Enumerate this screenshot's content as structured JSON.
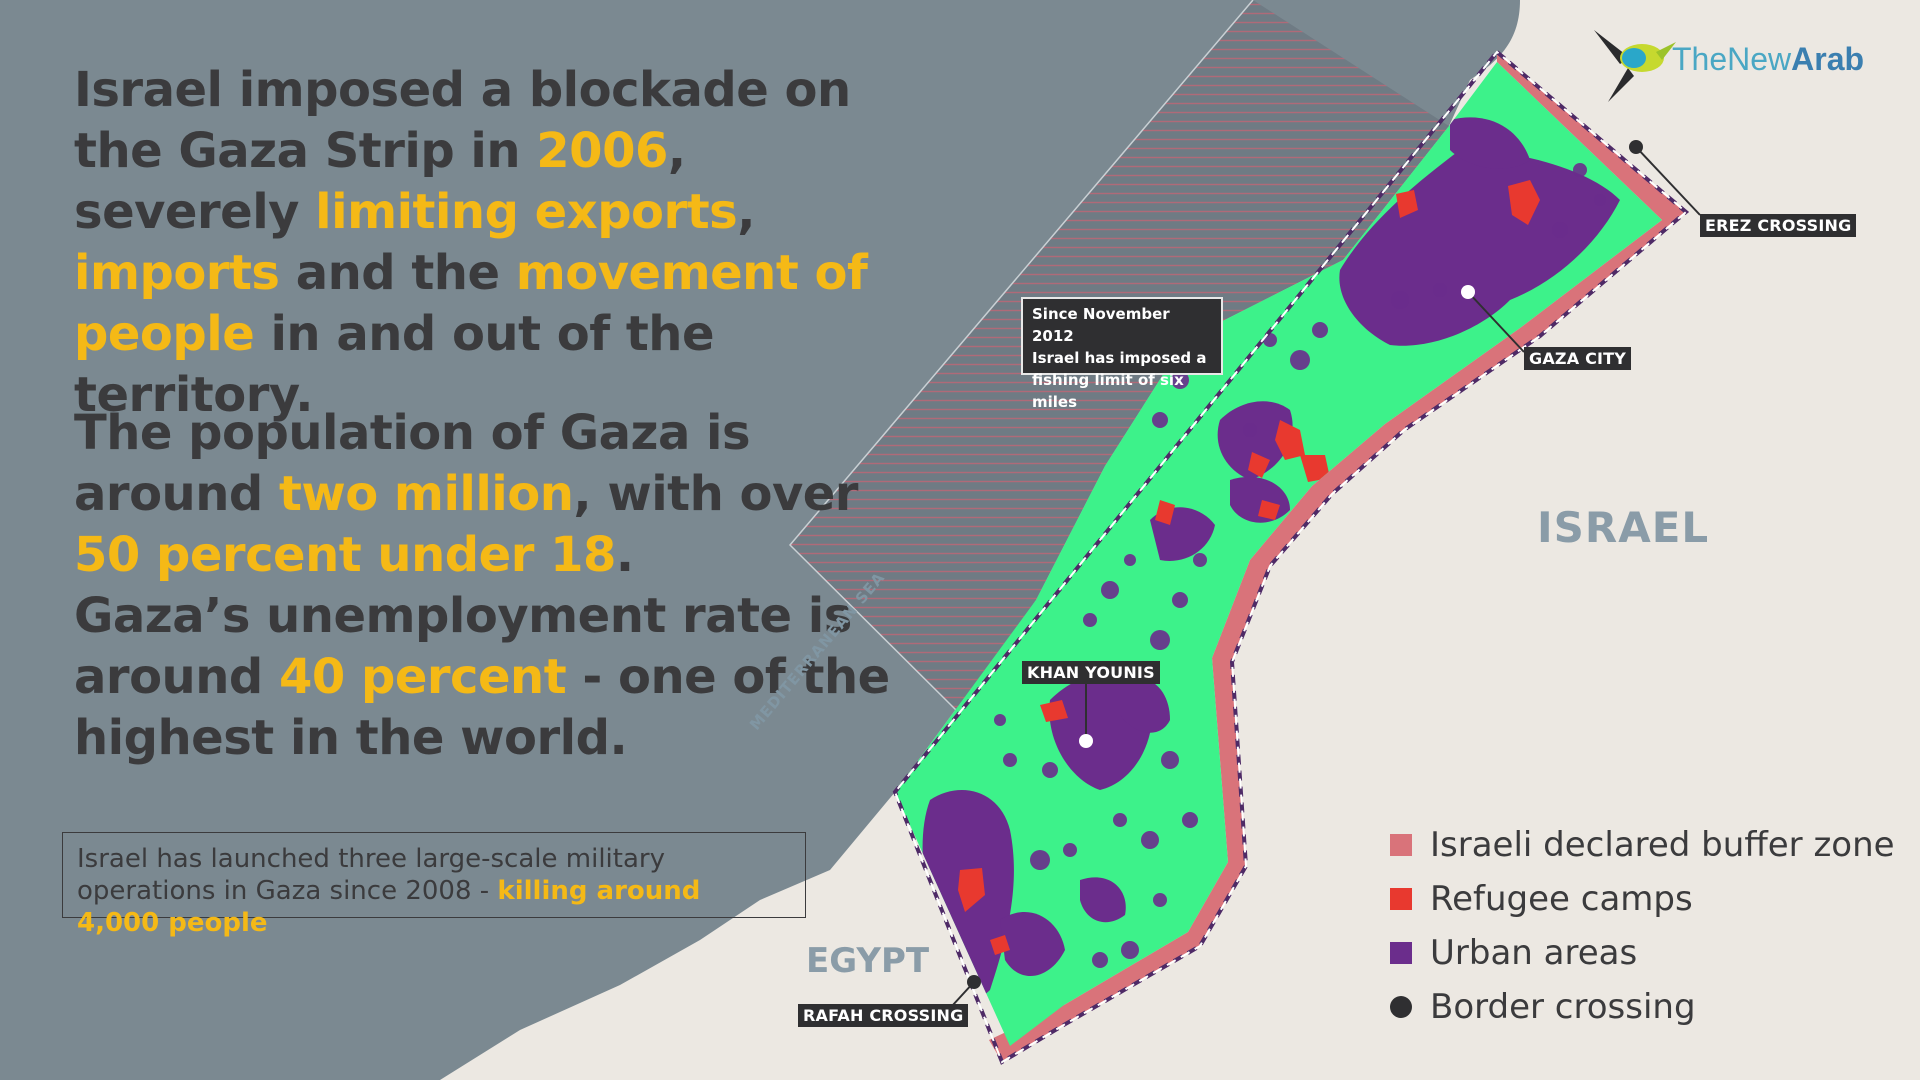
{
  "para1": {
    "p1": "Israel imposed a blockade on the Gaza Strip in ",
    "year": "2006",
    "p2": ", severely ",
    "exports": "limiting exports",
    "p3": ", ",
    "imports": "imports",
    "p4": " and the ",
    "movement": "movement of people",
    "p5": " in and out of the territory."
  },
  "para2": {
    "p1": "The population of Gaza is around ",
    "pop": "two million",
    "p2": ", with over ",
    "pct": "50 percent under 18",
    "p3": ".",
    "p4": "Gaza’s unemployment rate is around ",
    "unemp": "40 percent",
    "p5": " - one of the highest in the world."
  },
  "ops_box": {
    "text": "Israel has launched three large-scale military operations in Gaza since 2008 - ",
    "highlight": "killing around 4,000 people"
  },
  "fishing_note": {
    "line1": "Since November 2012",
    "line2": "Israel has imposed a",
    "line3": "fishing limit of six miles"
  },
  "places": {
    "erez": "EREZ CROSSING",
    "gaza_city": "GAZA CITY",
    "khan_younis": "KHAN YOUNIS",
    "rafah": "RAFAH CROSSING",
    "israel": "ISRAEL",
    "egypt": "EGYPT",
    "sea": "MEDITERRANEAN SEA"
  },
  "legend": [
    {
      "label": "Israeli declared buffer zone",
      "color": "#d9737a"
    },
    {
      "label": "Refugee camps",
      "color": "#e8392f"
    },
    {
      "label": "Urban areas",
      "color": "#6b2d8c"
    },
    {
      "label": "Border crossing",
      "color": "#2f2f31"
    }
  ],
  "logo": {
    "part1": "The",
    "part2": "New",
    "part3": "Arab"
  },
  "colors": {
    "highlight": "#f5b916",
    "sea": "#7d8c95",
    "land": "#ece8e2",
    "strip": "#3df28a"
  }
}
